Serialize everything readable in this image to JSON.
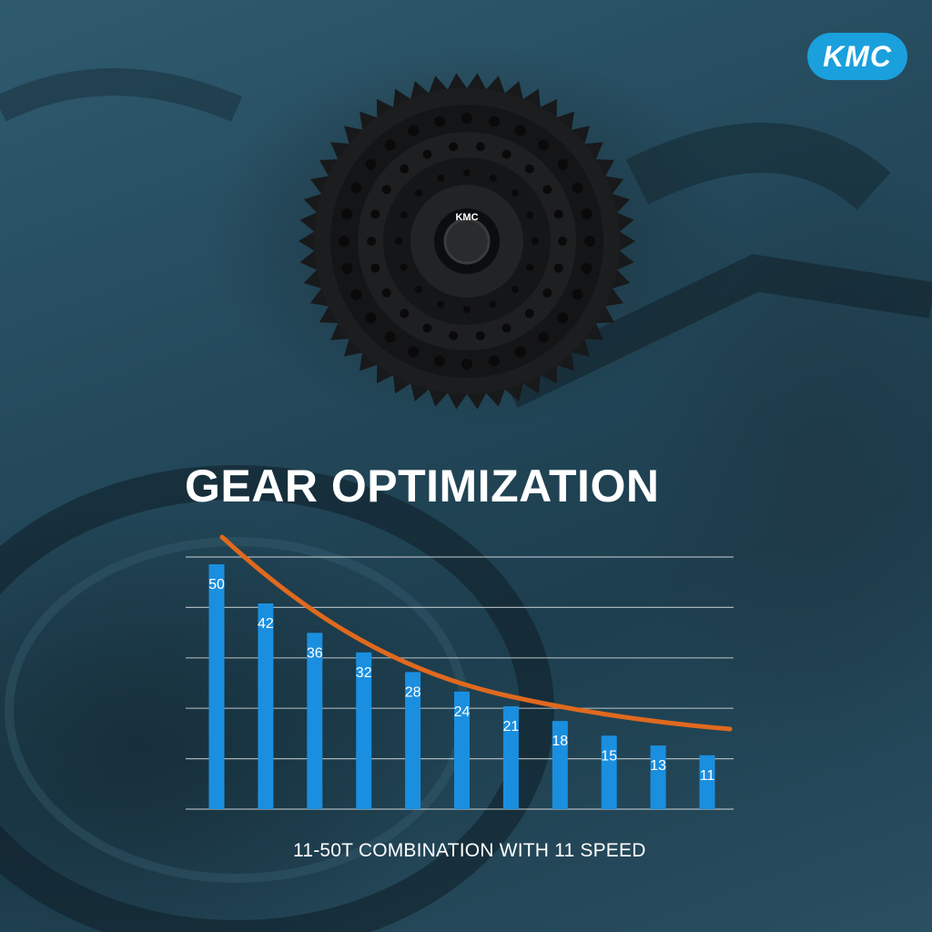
{
  "brand": {
    "logo_text": "KMC",
    "hub_text": "KMC"
  },
  "colors": {
    "bar": "#1a8fe0",
    "curve": "#e0691e",
    "grid": "#d8dde0"
  },
  "title": "GEAR OPTIMIZATION",
  "caption": "11-50T COMBINATION WITH 11 SPEED",
  "chart_data": {
    "type": "bar",
    "title": "GEAR OPTIMIZATION",
    "xlabel": "",
    "ylabel": "",
    "ylim": [
      0,
      50
    ],
    "grid": true,
    "values": [
      50,
      42,
      36,
      32,
      28,
      24,
      21,
      18,
      15,
      13,
      11
    ],
    "data_labels": [
      "50",
      "42",
      "36",
      "32",
      "28",
      "24",
      "21",
      "18",
      "15",
      "13",
      "11"
    ],
    "trend_curve": true
  }
}
